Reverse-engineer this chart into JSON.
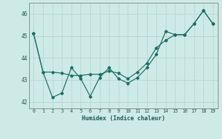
{
  "xlabel": "Humidex (Indice chaleur)",
  "background_color": "#ceeae6",
  "grid_color": "#b8d8d4",
  "line_color": "#1a6e64",
  "xlim": [
    -0.5,
    19.5
  ],
  "ylim": [
    41.7,
    46.5
  ],
  "yticks": [
    42,
    43,
    44,
    45,
    46
  ],
  "xticks": [
    0,
    1,
    2,
    3,
    4,
    5,
    6,
    7,
    8,
    9,
    10,
    11,
    12,
    13,
    14,
    15,
    16,
    17,
    18,
    19
  ],
  "line_a_y": [
    45.1,
    43.35,
    42.2,
    42.4,
    43.55,
    43.05,
    42.25,
    43.1,
    43.55,
    43.05,
    42.85,
    43.1,
    43.55,
    44.15,
    45.2,
    45.05,
    45.05,
    45.55,
    46.15,
    45.55
  ],
  "line_b_y": [
    45.1,
    43.35,
    43.35,
    43.3,
    43.2,
    43.2,
    43.25,
    43.25,
    43.4,
    43.3,
    43.05,
    43.35,
    43.75,
    44.45,
    44.8,
    45.05,
    45.05,
    45.55,
    46.15,
    45.55
  ]
}
